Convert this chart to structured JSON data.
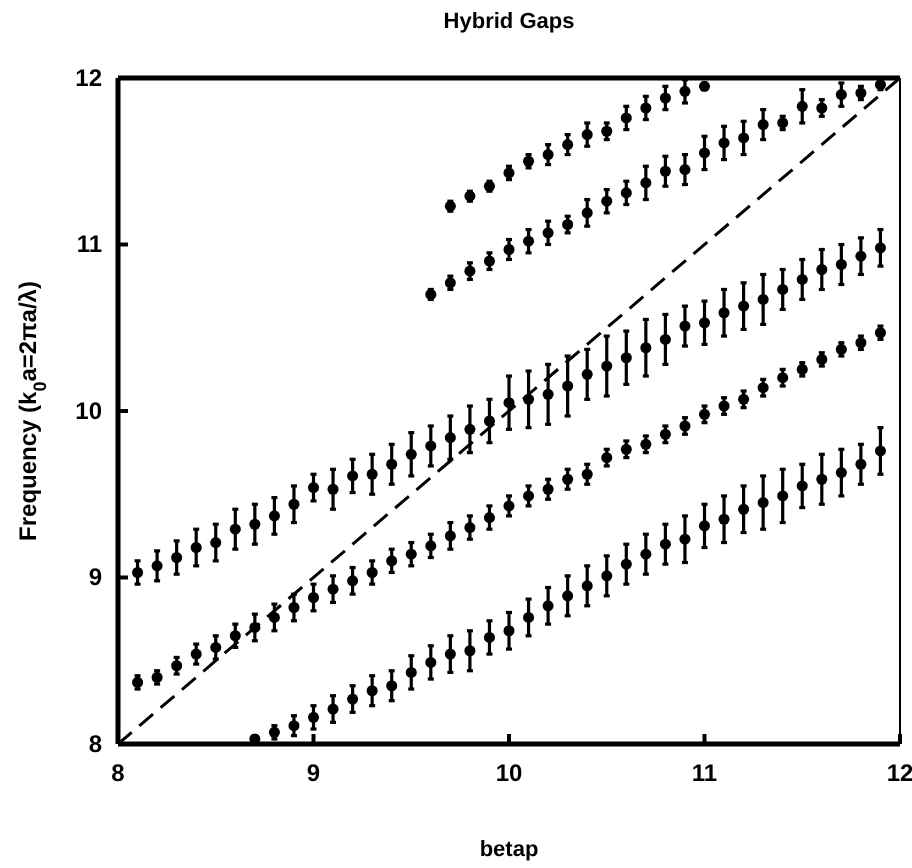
{
  "chart_data": {
    "type": "scatter",
    "title": "Hybrid Gaps",
    "xlabel": "betap",
    "ylabel": "Frequency (k$_{0}$a=2πa/λ)",
    "xlim": [
      8,
      12
    ],
    "ylim": [
      8,
      12
    ],
    "xticks": [
      8,
      9,
      10,
      11,
      12
    ],
    "yticks": [
      8,
      9,
      10,
      11,
      12
    ],
    "marker": "circle",
    "series": [
      {
        "color": "#000000",
        "x": [
          9.7,
          9.8,
          9.9,
          10.0,
          10.1,
          10.2,
          10.3,
          10.4,
          10.5,
          10.6,
          10.7,
          10.8,
          10.9,
          11.0
        ],
        "values": [
          11.23,
          11.29,
          11.35,
          11.43,
          11.5,
          11.54,
          11.6,
          11.66,
          11.68,
          11.76,
          11.82,
          11.88,
          11.92,
          11.95
        ],
        "errors": [
          0.03,
          0.03,
          0.03,
          0.04,
          0.04,
          0.06,
          0.06,
          0.07,
          0.05,
          0.07,
          0.07,
          0.07,
          0.07,
          0.02
        ]
      },
      {
        "color": "#000000",
        "x": [
          9.6,
          9.7,
          9.8,
          9.9,
          10.0,
          10.1,
          10.2,
          10.3,
          10.4,
          10.5,
          10.6,
          10.7,
          10.8,
          10.9,
          11.0,
          11.1,
          11.2,
          11.3,
          11.4,
          11.5,
          11.6,
          11.7,
          11.8,
          11.9
        ],
        "values": [
          10.7,
          10.77,
          10.84,
          10.9,
          10.97,
          11.02,
          11.07,
          11.12,
          11.19,
          11.26,
          11.31,
          11.37,
          11.44,
          11.45,
          11.55,
          11.61,
          11.64,
          11.72,
          11.73,
          11.83,
          11.82,
          11.9,
          11.91,
          11.96
        ],
        "errors": [
          0.03,
          0.04,
          0.05,
          0.05,
          0.06,
          0.07,
          0.07,
          0.05,
          0.08,
          0.07,
          0.07,
          0.1,
          0.09,
          0.09,
          0.1,
          0.1,
          0.1,
          0.09,
          0.04,
          0.1,
          0.05,
          0.07,
          0.04,
          0.03
        ]
      },
      {
        "color": "#000000",
        "x": [
          8.1,
          8.2,
          8.3,
          8.4,
          8.5,
          8.6,
          8.7,
          8.8,
          8.9,
          9.0,
          9.1,
          9.2,
          9.3,
          9.4,
          9.5,
          9.6,
          9.7,
          9.8,
          9.9,
          10.0,
          10.1,
          10.2,
          10.3,
          10.4,
          10.5,
          10.6,
          10.7,
          10.8,
          10.9,
          11.0,
          11.1,
          11.2,
          11.3,
          11.4,
          11.5,
          11.6,
          11.7,
          11.8,
          11.9
        ],
        "values": [
          9.03,
          9.07,
          9.12,
          9.18,
          9.21,
          9.29,
          9.32,
          9.37,
          9.44,
          9.54,
          9.53,
          9.61,
          9.62,
          9.68,
          9.74,
          9.79,
          9.84,
          9.89,
          9.94,
          10.05,
          10.07,
          10.1,
          10.15,
          10.22,
          10.27,
          10.32,
          10.38,
          10.43,
          10.51,
          10.53,
          10.59,
          10.63,
          10.67,
          10.73,
          10.79,
          10.85,
          10.88,
          10.93,
          10.98
        ],
        "errors": [
          0.07,
          0.09,
          0.1,
          0.11,
          0.11,
          0.12,
          0.12,
          0.11,
          0.11,
          0.08,
          0.12,
          0.1,
          0.12,
          0.12,
          0.13,
          0.12,
          0.13,
          0.14,
          0.13,
          0.16,
          0.17,
          0.18,
          0.18,
          0.15,
          0.18,
          0.16,
          0.17,
          0.15,
          0.12,
          0.13,
          0.14,
          0.14,
          0.15,
          0.12,
          0.12,
          0.12,
          0.12,
          0.11,
          0.11
        ]
      },
      {
        "color": "#000000",
        "x": [
          8.1,
          8.2,
          8.3,
          8.4,
          8.5,
          8.6,
          8.7,
          8.8,
          8.9,
          9.0,
          9.1,
          9.2,
          9.3,
          9.4,
          9.5,
          9.6,
          9.7,
          9.8,
          9.9,
          10.0,
          10.1,
          10.2,
          10.3,
          10.4,
          10.5,
          10.6,
          10.7,
          10.8,
          10.9,
          11.0,
          11.1,
          11.2,
          11.3,
          11.4,
          11.5,
          11.6,
          11.7,
          11.8,
          11.9
        ],
        "values": [
          8.37,
          8.4,
          8.47,
          8.54,
          8.58,
          8.65,
          8.7,
          8.76,
          8.82,
          8.88,
          8.93,
          8.98,
          9.03,
          9.1,
          9.14,
          9.19,
          9.25,
          9.3,
          9.36,
          9.43,
          9.49,
          9.53,
          9.59,
          9.62,
          9.72,
          9.77,
          9.8,
          9.86,
          9.91,
          9.98,
          10.03,
          10.07,
          10.14,
          10.2,
          10.25,
          10.31,
          10.37,
          10.41,
          10.47
        ],
        "errors": [
          0.04,
          0.04,
          0.05,
          0.06,
          0.07,
          0.07,
          0.08,
          0.08,
          0.08,
          0.08,
          0.08,
          0.08,
          0.07,
          0.07,
          0.07,
          0.07,
          0.08,
          0.07,
          0.07,
          0.06,
          0.06,
          0.06,
          0.06,
          0.06,
          0.05,
          0.05,
          0.05,
          0.05,
          0.05,
          0.05,
          0.05,
          0.05,
          0.05,
          0.05,
          0.04,
          0.04,
          0.04,
          0.04,
          0.04
        ]
      },
      {
        "color": "#000000",
        "x": [
          8.7,
          8.8,
          8.9,
          9.0,
          9.1,
          9.2,
          9.3,
          9.4,
          9.5,
          9.6,
          9.7,
          9.8,
          9.9,
          10.0,
          10.1,
          10.2,
          10.3,
          10.4,
          10.5,
          10.6,
          10.7,
          10.8,
          10.9,
          11.0,
          11.1,
          11.2,
          11.3,
          11.4,
          11.5,
          11.6,
          11.7,
          11.8,
          11.9
        ],
        "values": [
          8.03,
          8.07,
          8.11,
          8.16,
          8.21,
          8.27,
          8.32,
          8.35,
          8.43,
          8.49,
          8.54,
          8.56,
          8.64,
          8.68,
          8.76,
          8.83,
          8.89,
          8.95,
          9.01,
          9.08,
          9.14,
          9.2,
          9.23,
          9.31,
          9.35,
          9.41,
          9.45,
          9.49,
          9.55,
          9.59,
          9.63,
          9.68,
          9.76
        ],
        "errors": [
          0.02,
          0.04,
          0.06,
          0.07,
          0.08,
          0.08,
          0.09,
          0.09,
          0.1,
          0.1,
          0.11,
          0.12,
          0.1,
          0.11,
          0.11,
          0.11,
          0.12,
          0.12,
          0.12,
          0.12,
          0.12,
          0.12,
          0.14,
          0.13,
          0.14,
          0.14,
          0.16,
          0.16,
          0.13,
          0.15,
          0.14,
          0.12,
          0.14
        ]
      },
      {
        "type": "line",
        "color": "#000000",
        "line_style": "dashed",
        "marker": "none",
        "x": [
          8,
          12
        ],
        "values": [
          8,
          12
        ]
      }
    ]
  }
}
